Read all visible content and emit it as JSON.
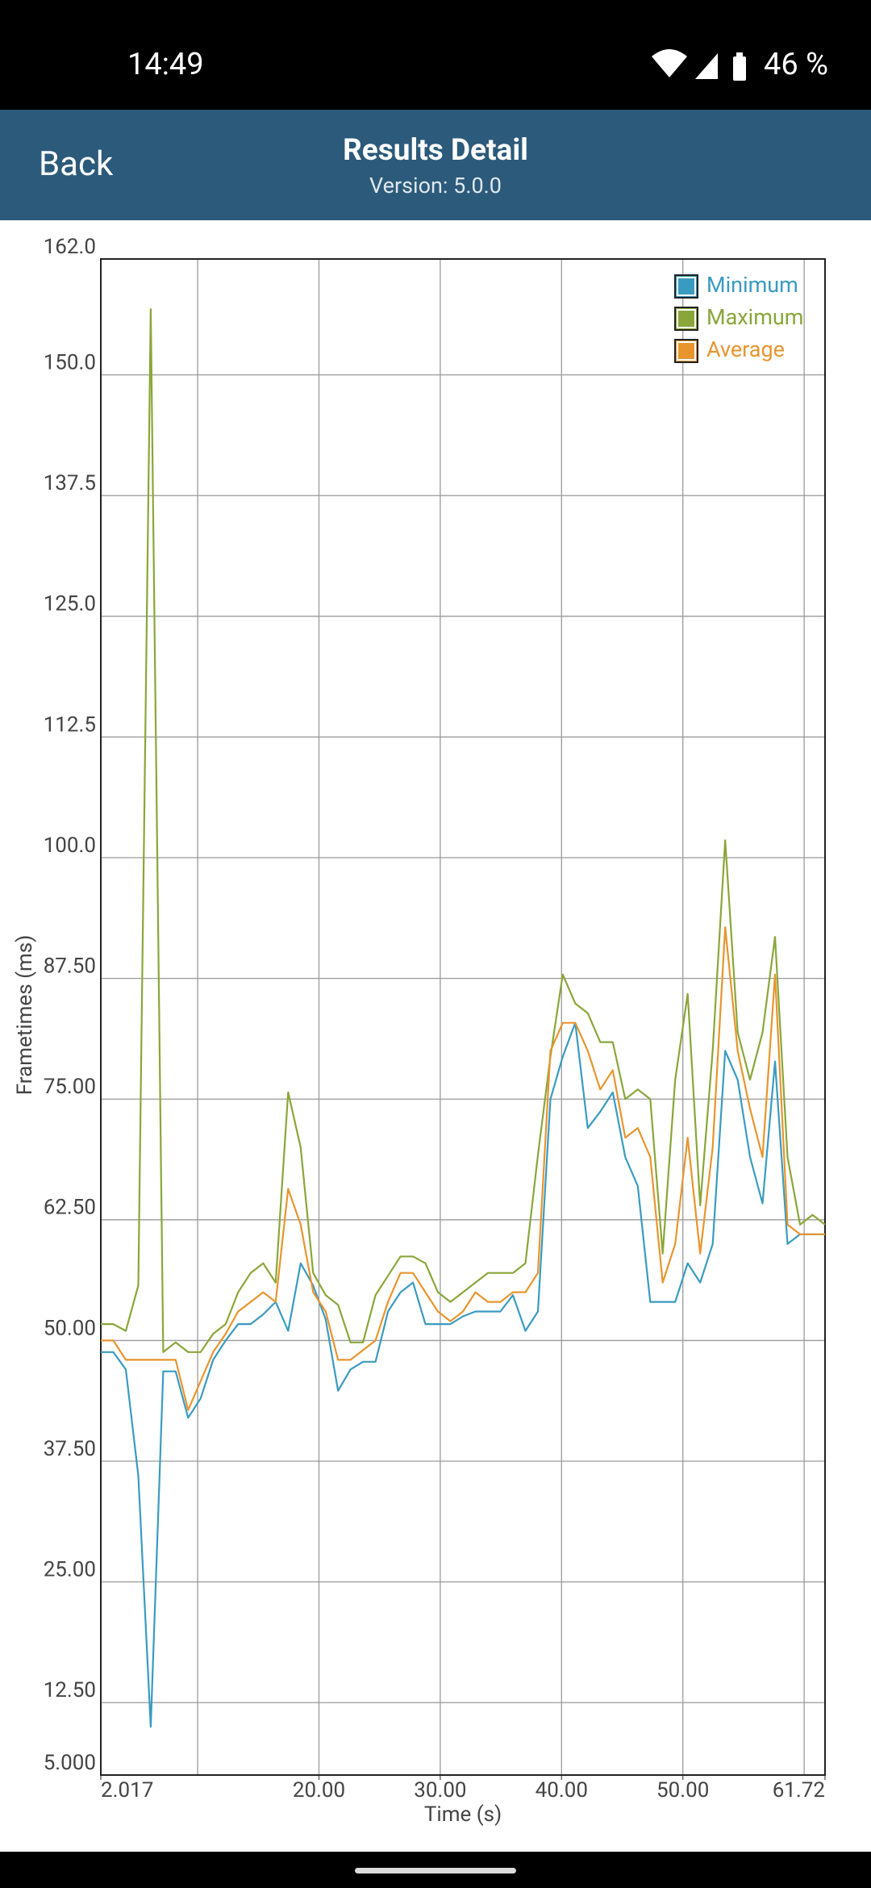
{
  "status_bar": {
    "time": "14:49",
    "battery": "46 %"
  },
  "header": {
    "back": "Back",
    "title": "Results Detail",
    "version": "Version: 5.0.0"
  },
  "chart_data": {
    "type": "line",
    "x_label": "Time (s)",
    "y_label": "Frametimes (ms)",
    "x": [
      2.017,
      3.05,
      4.08,
      5.11,
      6.13,
      7.16,
      8.19,
      9.22,
      10.25,
      11.28,
      12.31,
      13.34,
      14.37,
      15.4,
      16.43,
      17.46,
      18.49,
      19.52,
      20.55,
      21.58,
      22.6,
      23.63,
      24.66,
      25.69,
      26.72,
      27.75,
      28.78,
      29.81,
      30.84,
      31.87,
      32.9,
      33.93,
      34.96,
      35.99,
      37.02,
      38.05,
      39.08,
      40.1,
      41.13,
      42.16,
      43.19,
      44.22,
      45.25,
      46.28,
      47.31,
      48.34,
      49.37,
      50.4,
      51.43,
      52.46,
      53.49,
      54.52,
      55.54,
      56.57,
      57.6,
      58.63,
      59.66,
      60.69,
      61.72
    ],
    "series": [
      {
        "name": "Minimum",
        "color": "#3a9bc1",
        "values": [
          48.8,
          48.8,
          47,
          36,
          10,
          46.8,
          46.8,
          42,
          44,
          48,
          50,
          51.7,
          51.7,
          52.7,
          54,
          51,
          58,
          55.7,
          52.2,
          44.8,
          47,
          47.8,
          47.8,
          53,
          55,
          56,
          51.7,
          51.7,
          51.7,
          52.5,
          53,
          53,
          53,
          54.7,
          51,
          53,
          75,
          79.4,
          82.9,
          72,
          73.7,
          75.7,
          69,
          66,
          54,
          54,
          54,
          58,
          56,
          60,
          80,
          77,
          69,
          64.2,
          78.9,
          60,
          61,
          61,
          61
        ]
      },
      {
        "name": "Maximum",
        "color": "#8aa63a",
        "values": [
          51.7,
          51.7,
          51,
          55.7,
          156.8,
          48.8,
          49.8,
          48.8,
          48.8,
          50.7,
          51.7,
          55,
          57,
          58,
          56,
          75.7,
          70,
          57,
          54.7,
          53.7,
          49.8,
          49.8,
          54.7,
          56.7,
          58.7,
          58.7,
          58,
          55,
          54,
          55,
          56,
          57,
          57,
          57,
          58,
          69.2,
          79.4,
          87.9,
          84.9,
          83.9,
          80.9,
          80.9,
          75,
          76,
          75,
          59,
          77,
          85.9,
          64,
          80,
          101.8,
          81.9,
          77,
          81.9,
          91.8,
          69,
          62,
          63,
          62
        ]
      },
      {
        "name": "Average",
        "color": "#e8952e",
        "values": [
          50,
          50,
          48,
          48,
          48,
          48,
          48,
          42.8,
          45.8,
          48.8,
          50.7,
          53,
          54,
          55,
          54,
          65.7,
          62,
          55,
          53,
          48,
          48,
          49,
          50,
          54,
          57,
          57,
          55,
          53,
          52,
          53,
          55,
          54,
          54,
          55,
          55,
          57,
          80,
          82.9,
          82.9,
          80,
          76,
          78,
          71,
          72,
          69,
          56,
          60,
          71,
          59,
          70,
          92.8,
          80,
          74,
          69,
          87.9,
          62,
          61,
          61,
          61
        ]
      }
    ],
    "xlim": [
      2.017,
      61.72
    ],
    "xticks": [
      2.017,
      {
        "value": 20,
        "label": "20.00"
      },
      {
        "value": 30,
        "label": "30.00"
      },
      {
        "value": 40,
        "label": "40.00"
      },
      {
        "value": 50,
        "label": "50.00"
      },
      61.72
    ],
    "xgrid": [
      10,
      20,
      30,
      40,
      50,
      60
    ],
    "ylim": [
      5.0,
      162.0
    ],
    "yticks": [
      {
        "value": 5,
        "label": "5.000"
      },
      {
        "value": 12.5,
        "label": "12.50"
      },
      {
        "value": 25,
        "label": "25.00"
      },
      {
        "value": 37.5,
        "label": "37.50"
      },
      {
        "value": 50,
        "label": "50.00"
      },
      {
        "value": 62.5,
        "label": "62.50"
      },
      {
        "value": 75,
        "label": "75.00"
      },
      {
        "value": 87.5,
        "label": "87.50"
      },
      {
        "value": 100,
        "label": "100.0"
      },
      {
        "value": 112.5,
        "label": "112.5"
      },
      {
        "value": 125,
        "label": "125.0"
      },
      {
        "value": 137.5,
        "label": "137.5"
      },
      {
        "value": 150,
        "label": "150.0"
      },
      {
        "value": 162,
        "label": "162.0"
      }
    ],
    "grid": true,
    "legend": "top-right"
  }
}
